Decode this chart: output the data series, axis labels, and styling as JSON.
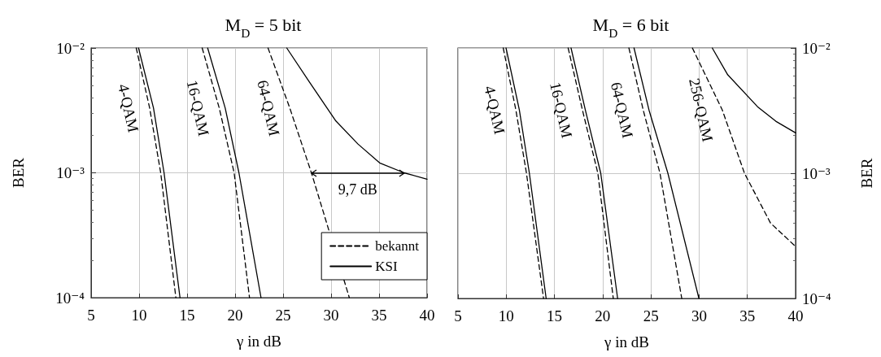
{
  "chart_data": [
    {
      "type": "line",
      "title": "M$_{D}$ = 5 bit",
      "xlabel": "γ in dB",
      "ylabel": "BER",
      "log": "y",
      "grid": true,
      "legend": "bottom right",
      "marker": "none",
      "xlim": [
        5,
        40
      ],
      "xticks": [
        5,
        10,
        15,
        20,
        25,
        30,
        35,
        40
      ],
      "ylim": [
        0.0001,
        0.01
      ],
      "yticks": [
        {
          "value": 0.0001,
          "label": "10⁻⁴"
        },
        {
          "value": 0.001,
          "label": "10⁻³"
        },
        {
          "value": 0.01,
          "label": "10⁻²"
        }
      ],
      "annotations": [
        "4-QAM",
        "16-QAM",
        "64-QAM",
        "9,7 dB"
      ],
      "series": [
        {
          "name": "bekannt",
          "color": "#000000",
          "line_style": "dashed",
          "x": [
            9.7,
            11.1,
            12.25,
            13.83
          ],
          "values": [
            0.01,
            0.0033,
            0.001,
            0.0001
          ]
        },
        {
          "name": "KSI",
          "color": "#000000",
          "line_style": "solid",
          "x": [
            9.94,
            11.5,
            12.6,
            14.26
          ],
          "values": [
            0.01,
            0.0033,
            0.001,
            0.0001
          ]
        },
        {
          "color": "#000000",
          "line_style": "dashed",
          "x": [
            16.57,
            18.35,
            19.9,
            21.5
          ],
          "values": [
            0.01,
            0.0033,
            0.001,
            0.0001
          ]
        },
        {
          "color": "#000000",
          "line_style": "solid",
          "x": [
            17.14,
            18.97,
            20.4,
            22.7
          ],
          "values": [
            0.01,
            0.0033,
            0.001,
            0.0001
          ]
        },
        {
          "color": "#000000",
          "line_style": "dashed",
          "x": [
            23.43,
            25.7,
            27.95,
            31.9
          ],
          "values": [
            0.01,
            0.0033,
            0.001,
            0.0001
          ]
        },
        {
          "color": "#000000",
          "line_style": "solid",
          "x": [
            25.38,
            27.7,
            30.5,
            32.8,
            35.06,
            37.6,
            40
          ],
          "values": [
            0.01,
            0.0054,
            0.0026,
            0.0017,
            0.0012,
            0.001,
            0.00089
          ]
        }
      ]
    },
    {
      "type": "line",
      "title": "M$_{D}$ = 6 bit",
      "xlabel": "γ in dB",
      "ylabel": "BER",
      "log": "y",
      "grid": true,
      "marker": "none",
      "xlim": [
        5,
        40
      ],
      "xticks": [
        5,
        10,
        15,
        20,
        25,
        30,
        35,
        40
      ],
      "ylim": [
        0.0001,
        0.01
      ],
      "yticks": [
        {
          "value": 0.0001,
          "label": "10⁻⁴"
        },
        {
          "value": 0.001,
          "label": "10⁻³"
        },
        {
          "value": 0.01,
          "label": "10⁻²"
        }
      ],
      "annotations": [
        "4-QAM",
        "16-QAM",
        "64-QAM",
        "256-QAM"
      ],
      "series": [
        {
          "color": "#000000",
          "line_style": "dashed",
          "x": [
            9.69,
            11.0,
            12.1,
            13.87
          ],
          "values": [
            0.01,
            0.0032,
            0.001,
            0.0001
          ]
        },
        {
          "color": "#000000",
          "line_style": "solid",
          "x": [
            9.98,
            11.36,
            12.4,
            14.14
          ],
          "values": [
            0.01,
            0.0032,
            0.001,
            0.0001
          ]
        },
        {
          "color": "#000000",
          "line_style": "dashed",
          "x": [
            16.42,
            17.9,
            19.5,
            21.1
          ],
          "values": [
            0.01,
            0.0032,
            0.001,
            0.0001
          ]
        },
        {
          "color": "#000000",
          "line_style": "solid",
          "x": [
            16.72,
            18.2,
            19.8,
            21.55
          ],
          "values": [
            0.01,
            0.0032,
            0.001,
            0.0001
          ]
        },
        {
          "color": "#000000",
          "line_style": "dashed",
          "x": [
            22.72,
            24.2,
            25.94,
            28.2
          ],
          "values": [
            0.01,
            0.0032,
            0.001,
            0.0001
          ]
        },
        {
          "color": "#000000",
          "line_style": "solid",
          "x": [
            23.25,
            24.8,
            26.76,
            29.98
          ],
          "values": [
            0.01,
            0.0032,
            0.001,
            0.0001
          ]
        },
        {
          "color": "#000000",
          "line_style": "dashed",
          "x": [
            29.3,
            32.4,
            34.7,
            37.4,
            40
          ],
          "values": [
            0.01,
            0.0032,
            0.001,
            0.0004,
            0.00026
          ]
        },
        {
          "color": "#000000",
          "line_style": "solid",
          "x": [
            31.36,
            32.97,
            36.05,
            37.95,
            40
          ],
          "values": [
            0.01,
            0.0061,
            0.0034,
            0.0026,
            0.0021
          ]
        }
      ]
    }
  ]
}
